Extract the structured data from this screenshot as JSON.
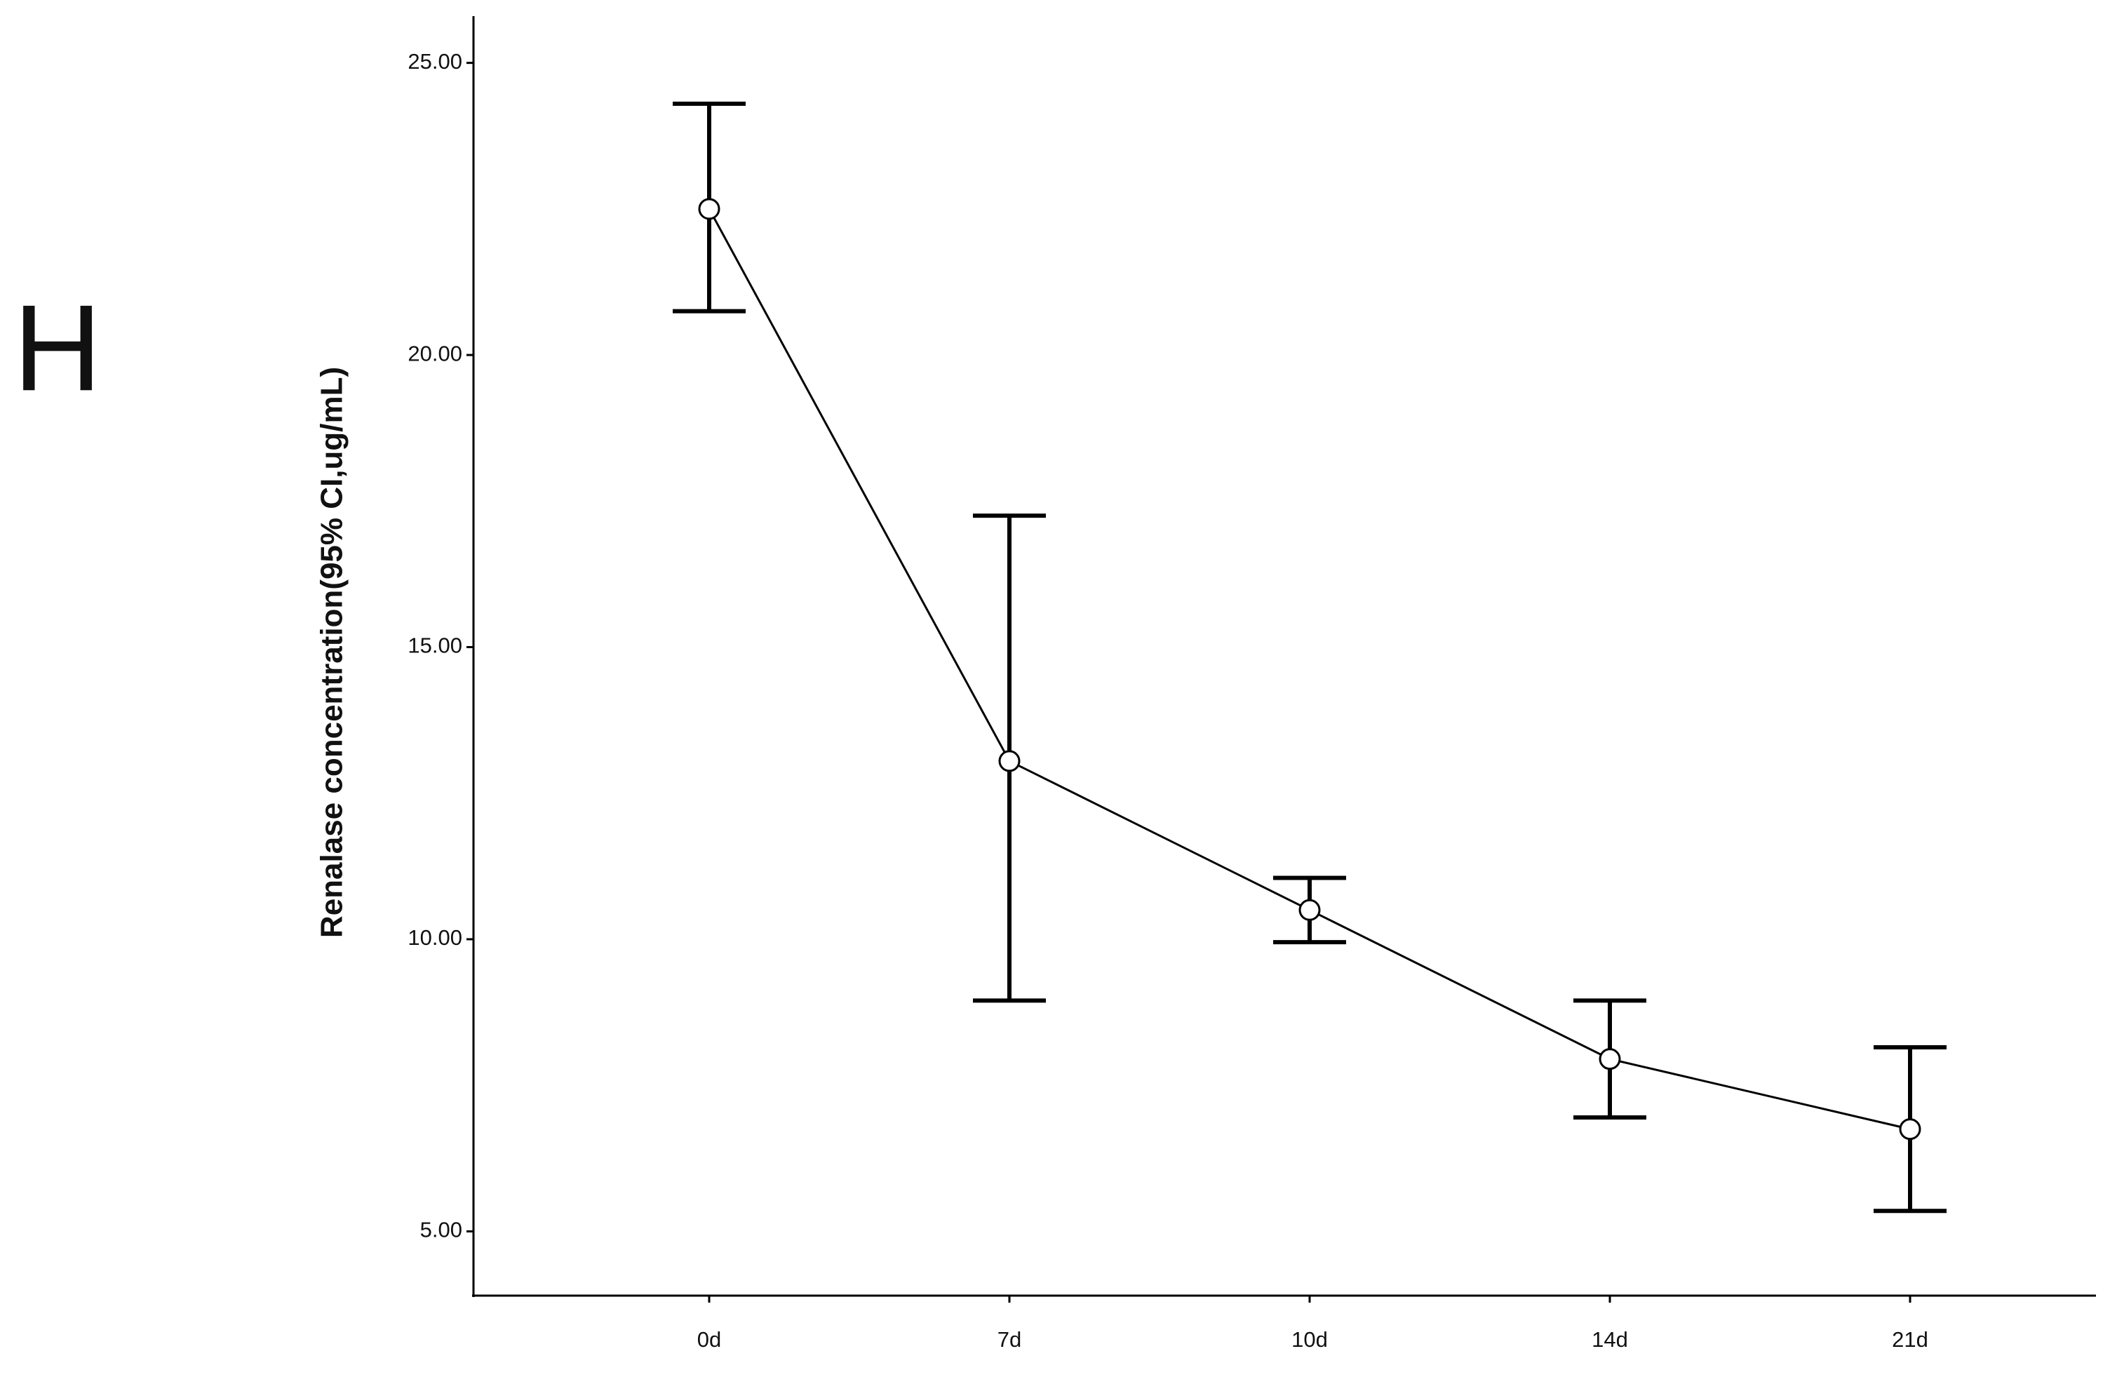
{
  "chart_data": {
    "type": "line",
    "panel_label": "H",
    "y_label": "Renalase concentration(95% CI,ug/mL)",
    "categories": [
      "0d",
      "7d",
      "10d",
      "14d",
      "21d"
    ],
    "values": [
      22.5,
      13.05,
      10.5,
      7.95,
      6.75
    ],
    "ci_lower": [
      20.75,
      8.95,
      9.95,
      6.95,
      5.35
    ],
    "ci_upper": [
      24.3,
      17.25,
      11.05,
      8.95,
      8.15
    ],
    "color": "#000000",
    "ylim": [
      3.9,
      25.8
    ],
    "yticks": [
      {
        "value": 5,
        "label": "5.00"
      },
      {
        "value": 10,
        "label": "10.00"
      },
      {
        "value": 15,
        "label": "15.00"
      },
      {
        "value": 20,
        "label": "20.00"
      },
      {
        "value": 25,
        "label": "25.00"
      }
    ],
    "grid": false
  }
}
